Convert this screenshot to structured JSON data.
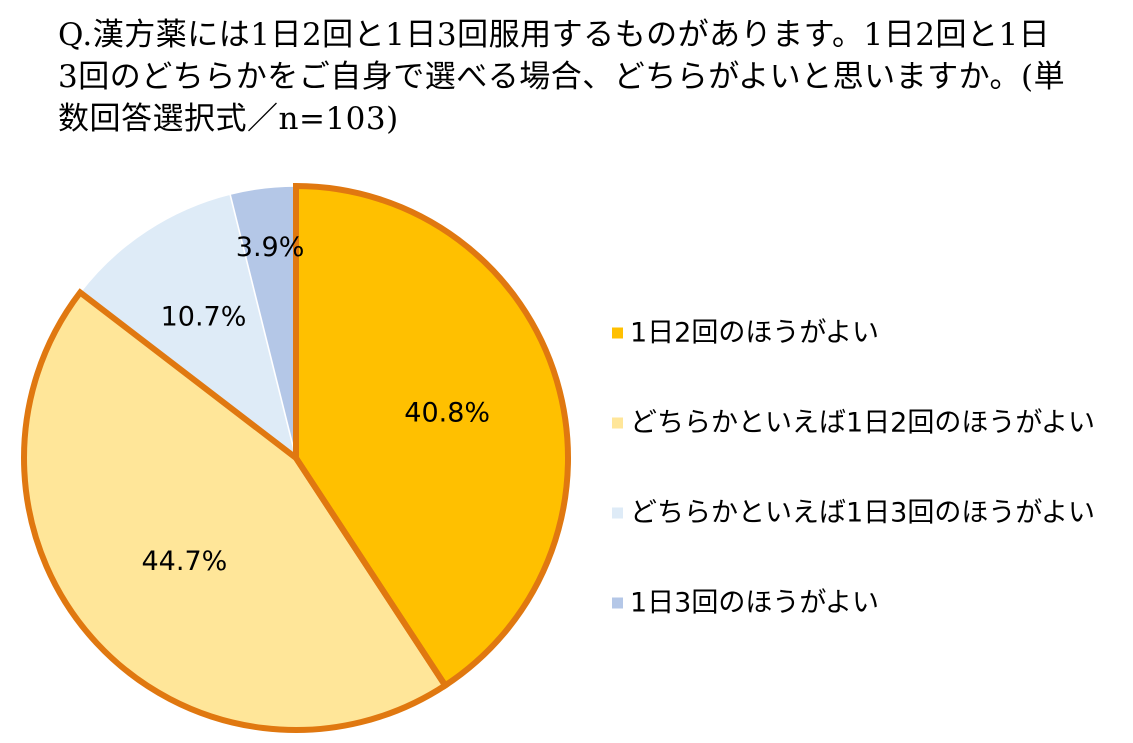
{
  "question": {
    "text": "Q.漢方薬には1日2回と1日3回服用するものがあります。1日2回と1日3回のどちらかをご自身で選べる場合、どちらがよいと思いますか。(単数回答選択式／n=103)"
  },
  "chart_data": {
    "type": "pie",
    "start_angle_deg": 0,
    "direction": "clockwise",
    "unit": "%",
    "categories": [
      "1日2回のほうがよい",
      "どちらかといえば1日2回のほうがよい",
      "どちらかといえば1日3回のほうがよい",
      "1日3回のほうがよい"
    ],
    "values": [
      40.8,
      44.7,
      10.7,
      3.9
    ],
    "data_labels": [
      "40.8%",
      "44.7%",
      "10.7%",
      "3.9%"
    ],
    "colors": [
      "#FFC000",
      "#FFE699",
      "#DEEBF7",
      "#B4C7E7"
    ],
    "highlight_border_color": "#E07810",
    "highlighted_slices": [
      0,
      1
    ],
    "legend_position": "right"
  }
}
